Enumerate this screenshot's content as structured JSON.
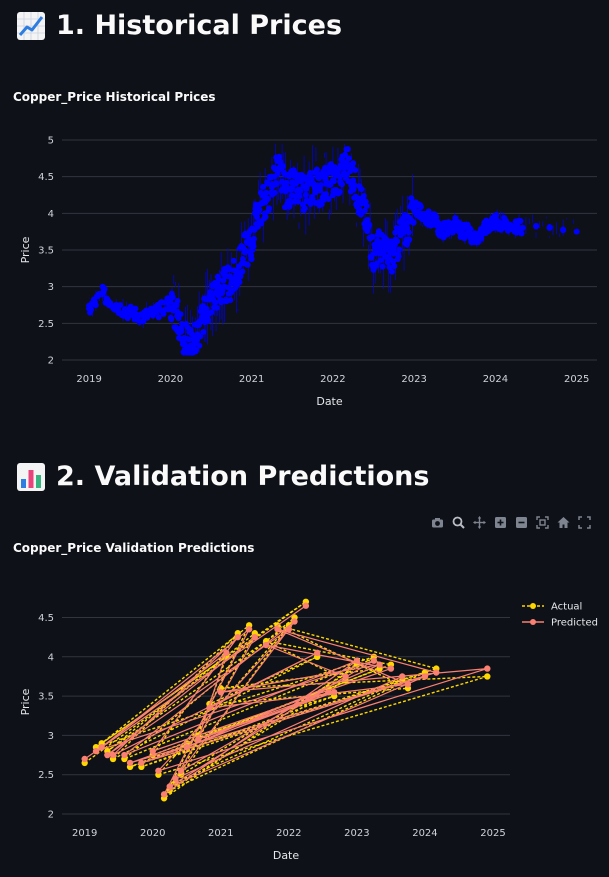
{
  "sections": [
    {
      "heading": "1. Historical Prices",
      "icon": "chart-increasing-icon"
    },
    {
      "heading": "2. Validation Predictions",
      "icon": "bar-chart-icon"
    }
  ],
  "modebar": {
    "icons": [
      "camera-icon",
      "zoom-icon",
      "pan-icon",
      "zoom-in-icon",
      "zoom-out-icon",
      "autoscale-icon",
      "reset-axes-icon",
      "fullscreen-icon"
    ]
  },
  "colors": {
    "background": "#0e1117",
    "historical_marker": "#0000ff",
    "actual": "#ffd700",
    "predicted": "#fa8072",
    "grid": "#31353f"
  },
  "chart_data": [
    {
      "type": "line",
      "title": "Copper_Price Historical Prices",
      "xlabel": "Date",
      "ylabel": "Price",
      "x_ticks": [
        "2019",
        "2020",
        "2021",
        "2022",
        "2023",
        "2024",
        "2025"
      ],
      "y_ticks": [
        2,
        2.5,
        3,
        3.5,
        4,
        4.5,
        5
      ],
      "xlim": [
        "2018-09-01",
        "2025-04-01"
      ],
      "ylim": [
        2,
        5
      ],
      "grid": true,
      "series": [
        {
          "x": [
            "2019-01",
            "2019-03",
            "2019-05",
            "2019-07",
            "2019-09",
            "2019-11",
            "2020-01",
            "2020-02",
            "2020-03",
            "2020-04",
            "2020-05",
            "2020-06",
            "2020-07",
            "2020-08",
            "2020-09",
            "2020-10",
            "2020-11",
            "2020-12",
            "2021-01",
            "2021-02",
            "2021-03",
            "2021-04",
            "2021-05",
            "2021-06",
            "2021-07",
            "2021-08",
            "2021-09",
            "2021-10",
            "2021-11",
            "2021-12",
            "2022-01",
            "2022-02",
            "2022-03",
            "2022-04",
            "2022-05",
            "2022-06",
            "2022-07",
            "2022-08",
            "2022-09",
            "2022-10",
            "2022-11",
            "2022-12",
            "2023-01",
            "2023-02",
            "2023-03",
            "2023-04",
            "2023-05",
            "2023-06",
            "2023-07",
            "2023-08",
            "2023-09",
            "2023-10",
            "2023-11",
            "2023-12",
            "2024-01",
            "2024-02",
            "2024-03",
            "2024-05",
            "2024-07",
            "2024-09",
            "2024-11",
            "2025-01"
          ],
          "values": [
            2.7,
            2.9,
            2.75,
            2.65,
            2.6,
            2.65,
            2.8,
            2.6,
            2.3,
            2.2,
            2.35,
            2.6,
            2.85,
            2.95,
            3.0,
            3.05,
            3.2,
            3.5,
            3.6,
            4.05,
            4.15,
            4.4,
            4.6,
            4.3,
            4.35,
            4.3,
            4.25,
            4.4,
            4.35,
            4.4,
            4.45,
            4.5,
            4.7,
            4.45,
            4.2,
            3.9,
            3.45,
            3.55,
            3.4,
            3.45,
            3.7,
            3.8,
            4.1,
            4.0,
            3.95,
            3.9,
            3.75,
            3.8,
            3.85,
            3.75,
            3.75,
            3.65,
            3.75,
            3.85,
            3.9,
            3.85,
            3.85,
            3.8,
            3.82,
            3.8,
            3.78,
            3.75
          ]
        }
      ]
    },
    {
      "type": "line",
      "title": "Copper_Price Validation Predictions",
      "xlabel": "Date",
      "ylabel": "Price",
      "x_ticks": [
        "2019",
        "2020",
        "2021",
        "2022",
        "2023",
        "2024",
        "2025"
      ],
      "y_ticks": [
        2,
        2.5,
        3,
        3.5,
        4,
        4.5
      ],
      "xlim": [
        "2018-09-01",
        "2025-04-01"
      ],
      "ylim": [
        2,
        4.85
      ],
      "grid": true,
      "legend": "top-right",
      "series": [
        {
          "name": "Actual",
          "x": [
            "2019-01",
            "2022-04",
            "2019-04",
            "2021-06",
            "2020-03",
            "2023-01",
            "2019-08",
            "2022-02",
            "2020-06",
            "2023-04",
            "2019-03",
            "2021-02",
            "2020-09",
            "2022-09",
            "2019-11",
            "2024-01",
            "2020-04",
            "2022-11",
            "2021-09",
            "2023-07",
            "2020-01",
            "2021-04",
            "2019-06",
            "2022-06",
            "2020-11",
            "2023-10",
            "2021-11",
            "2024-03",
            "2019-09",
            "2022-08",
            "2020-07",
            "2023-05",
            "2021-01",
            "2024-12",
            "2020-02",
            "2022-01",
            "2019-05",
            "2021-07",
            "2020-05",
            "2023-09"
          ],
          "values": [
            2.65,
            4.7,
            2.9,
            4.4,
            2.2,
            3.9,
            2.7,
            4.5,
            2.5,
            4.0,
            2.85,
            4.0,
            3.0,
            3.5,
            2.6,
            3.8,
            2.3,
            3.7,
            4.2,
            3.9,
            2.75,
            4.3,
            2.7,
            4.0,
            3.4,
            3.6,
            4.4,
            3.85,
            2.6,
            3.6,
            2.9,
            3.85,
            3.6,
            3.75,
            2.5,
            4.4,
            2.8,
            4.3,
            2.4,
            3.7
          ]
        },
        {
          "name": "Predicted",
          "x": [
            "2019-01",
            "2022-04",
            "2019-04",
            "2021-06",
            "2020-03",
            "2023-01",
            "2019-08",
            "2022-02",
            "2020-06",
            "2023-04",
            "2019-03",
            "2021-02",
            "2020-09",
            "2022-09",
            "2019-11",
            "2024-01",
            "2020-04",
            "2022-11",
            "2021-09",
            "2023-07",
            "2020-01",
            "2021-04",
            "2019-06",
            "2022-06",
            "2020-11",
            "2023-10",
            "2021-11",
            "2024-03",
            "2019-09",
            "2022-08",
            "2020-07",
            "2023-05",
            "2021-01",
            "2024-12",
            "2020-02",
            "2022-01",
            "2019-05",
            "2021-07",
            "2020-05",
            "2023-09"
          ],
          "values": [
            2.7,
            4.65,
            2.85,
            4.35,
            2.25,
            3.95,
            2.75,
            4.45,
            2.55,
            3.95,
            2.8,
            4.05,
            2.95,
            3.55,
            2.65,
            3.75,
            2.35,
            3.75,
            4.15,
            3.85,
            2.8,
            4.25,
            2.75,
            4.05,
            3.35,
            3.65,
            4.35,
            3.8,
            2.65,
            3.55,
            2.85,
            3.9,
            3.55,
            3.85,
            2.55,
            4.35,
            2.75,
            4.25,
            2.45,
            3.75
          ]
        }
      ]
    }
  ]
}
